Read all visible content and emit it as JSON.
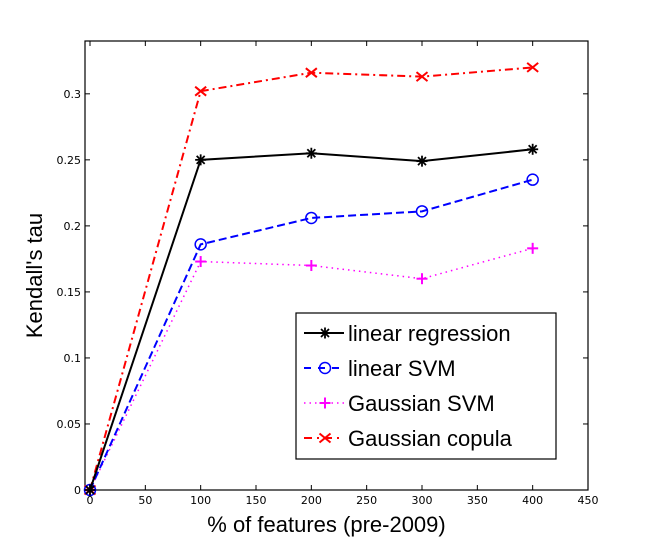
{
  "chart_data": {
    "type": "line",
    "title": "",
    "xlabel": "% of features (pre-2009)",
    "ylabel": "Kendall's tau",
    "xlim": [
      0,
      450
    ],
    "ylim": [
      0,
      0.34
    ],
    "grid": false,
    "xticks": [
      0,
      50,
      100,
      150,
      200,
      250,
      300,
      350,
      400,
      450
    ],
    "xtick_labels": [
      "0",
      "50",
      "100",
      "150",
      "200",
      "250",
      "300",
      "350",
      "400",
      "450"
    ],
    "yticks": [
      0,
      0.05,
      0.1,
      0.15,
      0.2,
      0.25,
      0.3
    ],
    "ytick_labels": [
      "0",
      "0.05",
      "0.1",
      "0.15",
      "0.2",
      "0.25",
      "0.3"
    ],
    "x": [
      0,
      100,
      200,
      300,
      400
    ],
    "legend_position": "bottom-right",
    "series": [
      {
        "name": "linear regression",
        "values": [
          0,
          0.25,
          0.255,
          0.249,
          0.258
        ],
        "color": "#000000",
        "dash": "solid",
        "marker": "asterisk"
      },
      {
        "name": "linear SVM",
        "values": [
          0,
          0.186,
          0.206,
          0.211,
          0.235
        ],
        "color": "#0000ff",
        "dash": "dashed",
        "marker": "circle"
      },
      {
        "name": "Gaussian SVM",
        "values": [
          0,
          0.173,
          0.17,
          0.16,
          0.183
        ],
        "color": "#ff00ff",
        "dash": "dotted",
        "marker": "plus"
      },
      {
        "name": "Gaussian copula",
        "values": [
          0,
          0.302,
          0.316,
          0.313,
          0.32
        ],
        "color": "#ff0000",
        "dash": "dashdot",
        "marker": "x"
      }
    ]
  }
}
